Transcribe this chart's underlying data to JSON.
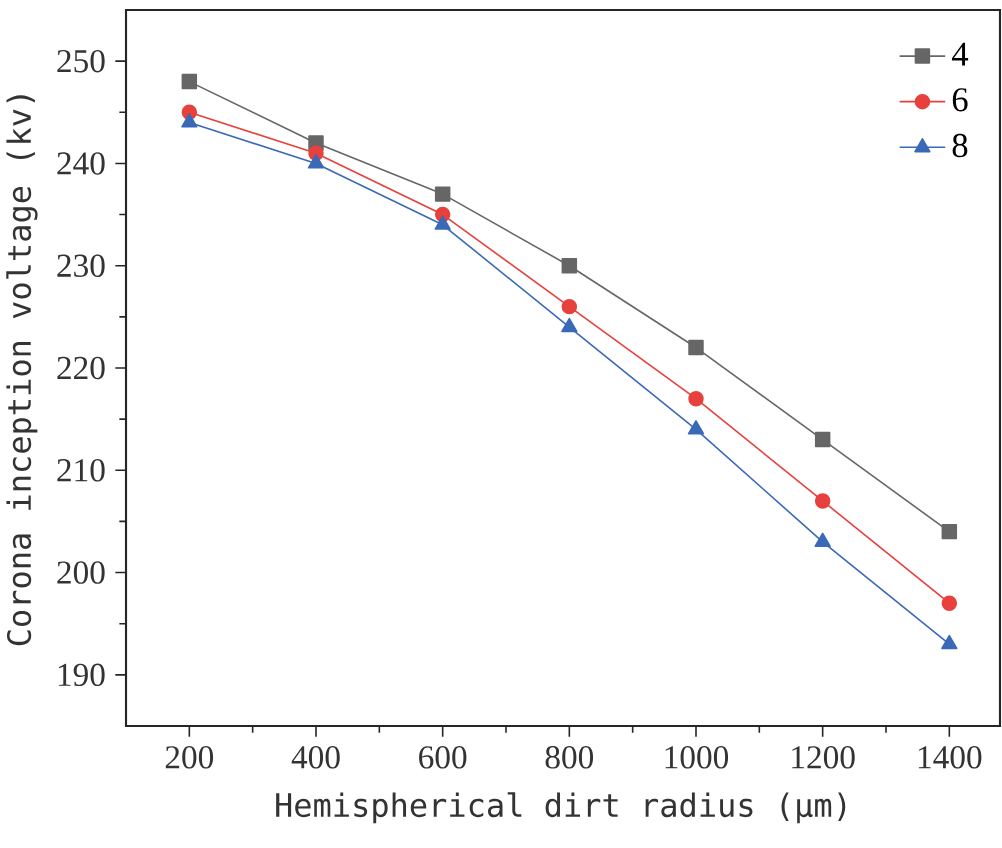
{
  "chart_data": {
    "type": "line",
    "xlabel": "Hemispherical dirt radius (μm)",
    "ylabel": "Corona inception voltage (kv)",
    "x": [
      200,
      400,
      600,
      800,
      1000,
      1200,
      1400
    ],
    "series": [
      {
        "name": "4",
        "color": "#666666",
        "marker": "square",
        "values": [
          248,
          242,
          237,
          230,
          222,
          213,
          204
        ]
      },
      {
        "name": "6",
        "color": "#e8403c",
        "marker": "circle",
        "values": [
          245,
          241,
          235,
          226,
          217,
          207,
          197
        ]
      },
      {
        "name": "8",
        "color": "#3a69b8",
        "marker": "triangle",
        "values": [
          244,
          240,
          234,
          224,
          214,
          203,
          193
        ]
      }
    ],
    "xlim": [
      100,
      1480
    ],
    "ylim": [
      185,
      255
    ],
    "xticks": [
      200,
      400,
      600,
      800,
      1000,
      1200,
      1400
    ],
    "yticks": [
      190,
      200,
      210,
      220,
      230,
      240,
      250
    ],
    "grid": false,
    "legend": "top right",
    "line_style": "solid"
  }
}
